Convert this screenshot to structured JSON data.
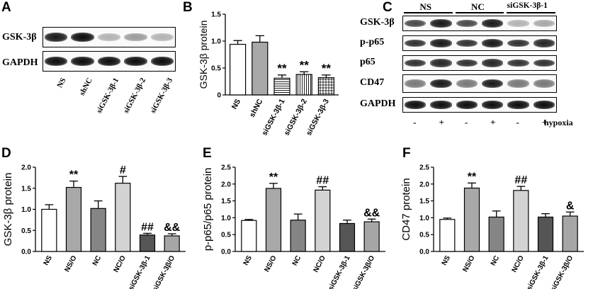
{
  "panels": {
    "A": {
      "letter": "A",
      "row_labels": [
        "GSK-3β",
        "GAPDH"
      ],
      "lanes": [
        "NS",
        "shNC",
        "siGSK-3β-1",
        "siGSK-3β-2",
        "siGSK-3β-3"
      ],
      "intensities": {
        "GSK-3β": [
          0.95,
          1.0,
          0.3,
          0.4,
          0.3
        ],
        "GAPDH": [
          1.0,
          1.0,
          1.0,
          1.0,
          1.0
        ]
      }
    },
    "C": {
      "letter": "C",
      "groups": [
        "NS",
        "NC",
        "siGSK-3β-1"
      ],
      "row_labels": [
        "GSK-3β",
        "p-p65",
        "p65",
        "CD47",
        "GAPDH"
      ],
      "hypoxia_label": "hypoxia",
      "hypoxia_signs": [
        "-",
        "+",
        "-",
        "+",
        "-",
        "+"
      ],
      "intensities": {
        "GSK-3β": [
          0.75,
          0.95,
          0.75,
          0.95,
          0.3,
          0.35
        ],
        "p-p65": [
          0.85,
          0.95,
          0.85,
          0.95,
          0.85,
          0.9
        ],
        "p65": [
          0.85,
          0.9,
          0.85,
          0.9,
          0.85,
          0.85
        ],
        "CD47": [
          0.55,
          0.95,
          0.55,
          0.95,
          0.55,
          0.55
        ],
        "GAPDH": [
          1.0,
          1.0,
          1.0,
          1.0,
          1.0,
          1.0
        ]
      }
    }
  },
  "chart_data": [
    {
      "id": "B",
      "type": "bar",
      "letter": "B",
      "ylabel": "GSK-3β protein",
      "ylim": [
        0,
        1.5
      ],
      "yticks": [
        0,
        0.5,
        1.0,
        1.5
      ],
      "yticklabels": [
        "0",
        "0.5",
        "1.0",
        "1.5"
      ],
      "categories": [
        "NS",
        "shNC",
        "siGSK-3β-1",
        "siGSK-3β-2",
        "siGSK-3β-3"
      ],
      "values": [
        0.94,
        0.98,
        0.31,
        0.38,
        0.32
      ],
      "errors": [
        0.07,
        0.12,
        0.06,
        0.05,
        0.05
      ],
      "fills": [
        "white",
        "#a8a8a8",
        "hlines",
        "vlines",
        "grid"
      ],
      "annotations": [
        "",
        "",
        "**",
        "**",
        "**"
      ]
    },
    {
      "id": "D",
      "type": "bar",
      "letter": "D",
      "ylabel": "GSK-3β protein",
      "ylim": [
        0,
        2.0
      ],
      "yticks": [
        0,
        0.5,
        1.0,
        1.5,
        2.0
      ],
      "yticklabels": [
        "0.0",
        "0.5",
        "1.0",
        "1.5",
        "2.0"
      ],
      "categories": [
        "NS",
        "NS/O",
        "NC",
        "NC/O",
        "siGSK-3β-1",
        "siGSK-3β/O"
      ],
      "values": [
        1.0,
        1.52,
        1.02,
        1.62,
        0.39,
        0.37
      ],
      "errors": [
        0.11,
        0.15,
        0.18,
        0.16,
        0.04,
        0.05
      ],
      "fills": [
        "#ffffff",
        "#a8a8a8",
        "#858585",
        "#d3d3d3",
        "#555555",
        "#a6a6a6"
      ],
      "annotations": [
        "",
        "**",
        "",
        "#",
        "##",
        "&&"
      ]
    },
    {
      "id": "E",
      "type": "bar",
      "letter": "E",
      "ylabel": "p-p65/p65 protein",
      "ylim": [
        0,
        2.5
      ],
      "yticks": [
        0,
        0.5,
        1.0,
        1.5,
        2.0,
        2.5
      ],
      "yticklabels": [
        "0.0",
        "0.5",
        "1.0",
        "1.5",
        "2.0",
        "2.5"
      ],
      "categories": [
        "NS",
        "NS/O",
        "NC",
        "NC/O",
        "siGSK-3β-1",
        "siGSK-3β/O"
      ],
      "values": [
        0.92,
        1.87,
        0.93,
        1.82,
        0.83,
        0.88
      ],
      "errors": [
        0.03,
        0.15,
        0.18,
        0.1,
        0.1,
        0.08
      ],
      "fills": [
        "#ffffff",
        "#a8a8a8",
        "#858585",
        "#d3d3d3",
        "#555555",
        "#a6a6a6"
      ],
      "annotations": [
        "",
        "**",
        "",
        "##",
        "",
        "&&"
      ]
    },
    {
      "id": "F",
      "type": "bar",
      "letter": "F",
      "ylabel": "CD47 protein",
      "ylim": [
        0,
        2.5
      ],
      "yticks": [
        0,
        0.5,
        1.0,
        1.5,
        2.0,
        2.5
      ],
      "yticklabels": [
        "0.0",
        "0.5",
        "1.0",
        "1.5",
        "2.0",
        "2.5"
      ],
      "categories": [
        "NS",
        "NS/O",
        "NC",
        "NC/O",
        "siGSK-3β-1",
        "siGSK-3β/O"
      ],
      "values": [
        0.95,
        1.88,
        1.02,
        1.81,
        1.02,
        1.05
      ],
      "errors": [
        0.04,
        0.15,
        0.18,
        0.12,
        0.1,
        0.12
      ],
      "fills": [
        "#ffffff",
        "#a8a8a8",
        "#858585",
        "#d3d3d3",
        "#555555",
        "#a6a6a6"
      ],
      "annotations": [
        "",
        "**",
        "",
        "##",
        "",
        "&"
      ]
    }
  ]
}
